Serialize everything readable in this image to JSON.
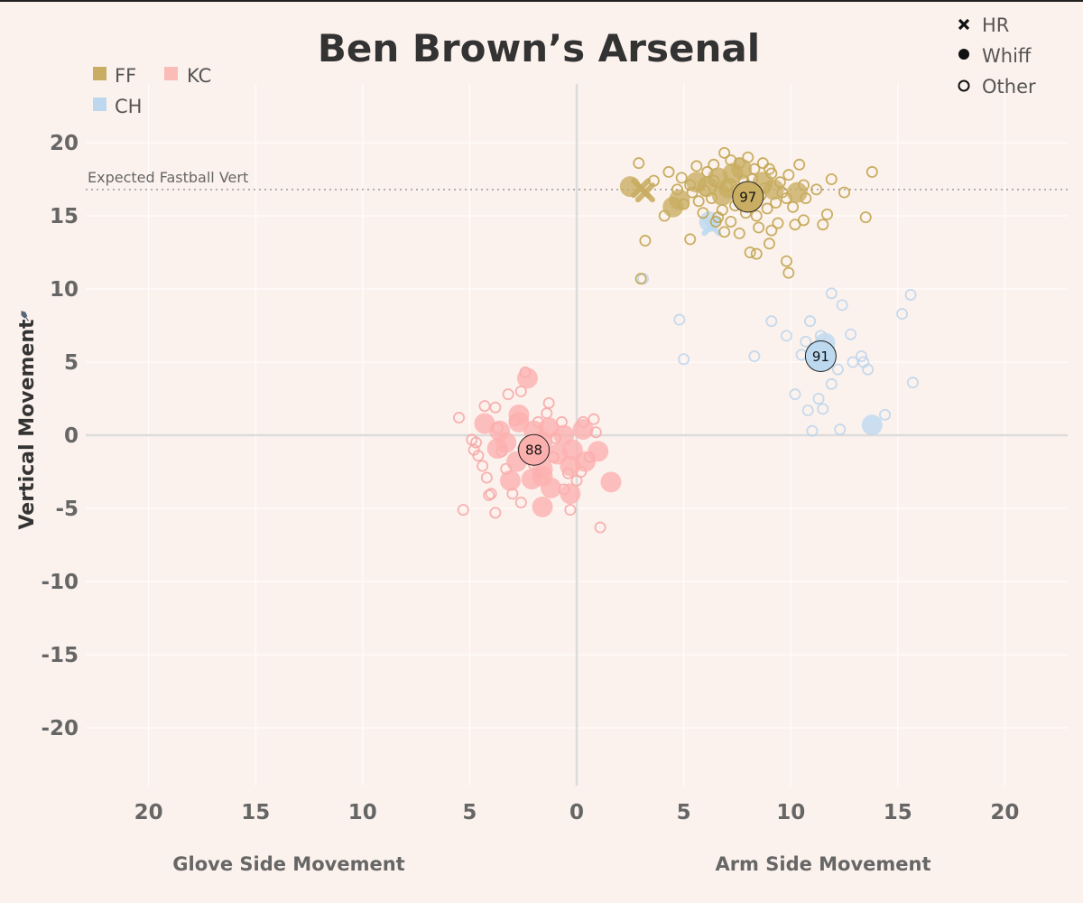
{
  "chart_data": {
    "type": "scatter",
    "title": "Ben Brown’s Arsenal",
    "ylabel": "Vertical Movement",
    "xlabel_left": "Glove Side Movement",
    "xlabel_right": "Arm Side Movement",
    "xlim": [
      -23,
      23
    ],
    "ylim": [
      -24,
      24
    ],
    "x_ticks": [
      -20,
      -15,
      -10,
      -5,
      0,
      5,
      10,
      15,
      20
    ],
    "x_tick_labels": [
      "20",
      "15",
      "10",
      "5",
      "0",
      "5",
      "10",
      "15",
      "20"
    ],
    "y_ticks": [
      20,
      15,
      10,
      5,
      0,
      -5,
      -10,
      -15,
      -20
    ],
    "y_tick_labels": [
      "20",
      "15",
      "10",
      "5",
      "0",
      "-5",
      "-10",
      "-15",
      "-20"
    ],
    "reference_line": {
      "label": "Expected Fastball Vert",
      "y": 16.8
    },
    "pitch_legend": [
      {
        "code": "FF",
        "color": "#c8ad62"
      },
      {
        "code": "KC",
        "color": "#fbbcb8"
      },
      {
        "code": "CH",
        "color": "#bcd7ee"
      }
    ],
    "outcome_legend": [
      {
        "label": "HR",
        "symbol": "x"
      },
      {
        "label": "Whiff",
        "symbol": "filled"
      },
      {
        "label": "Other",
        "symbol": "open"
      }
    ],
    "series": [
      {
        "name": "FF",
        "color": "#c0a24a",
        "fill": "#c8ad62",
        "mean": {
          "x": 8.0,
          "y": 16.3,
          "velo": "97"
        },
        "whiff": [
          [
            2.5,
            17.0
          ],
          [
            4.5,
            15.6
          ],
          [
            4.8,
            16.1
          ],
          [
            6.1,
            17.0
          ],
          [
            6.6,
            17.6
          ],
          [
            7.3,
            17.9
          ],
          [
            7.7,
            18.2
          ],
          [
            8.0,
            16.2
          ],
          [
            7.1,
            16.9
          ],
          [
            8.7,
            17.3
          ],
          [
            10.3,
            16.6
          ],
          [
            5.6,
            17.3
          ],
          [
            6.8,
            16.4
          ],
          [
            9.2,
            16.8
          ]
        ],
        "hr": [
          [
            3.2,
            16.6
          ],
          [
            3.0,
            16.9
          ]
        ],
        "other": [
          [
            2.9,
            18.6
          ],
          [
            3.6,
            17.4
          ],
          [
            4.3,
            18.0
          ],
          [
            4.9,
            17.6
          ],
          [
            5.3,
            17.1
          ],
          [
            5.6,
            18.4
          ],
          [
            6.1,
            18.0
          ],
          [
            6.4,
            18.5
          ],
          [
            6.9,
            19.3
          ],
          [
            7.2,
            18.8
          ],
          [
            7.6,
            18.6
          ],
          [
            8.0,
            19.0
          ],
          [
            8.3,
            18.2
          ],
          [
            8.7,
            18.6
          ],
          [
            9.1,
            17.9
          ],
          [
            9.5,
            17.3
          ],
          [
            9.9,
            17.8
          ],
          [
            10.4,
            18.5
          ],
          [
            10.6,
            17.1
          ],
          [
            11.2,
            16.8
          ],
          [
            11.9,
            17.5
          ],
          [
            12.5,
            16.6
          ],
          [
            13.8,
            18.0
          ],
          [
            13.5,
            14.9
          ],
          [
            11.7,
            15.1
          ],
          [
            11.5,
            14.4
          ],
          [
            10.6,
            14.7
          ],
          [
            10.2,
            14.4
          ],
          [
            9.4,
            14.5
          ],
          [
            9.0,
            13.1
          ],
          [
            8.4,
            12.4
          ],
          [
            8.1,
            12.5
          ],
          [
            9.8,
            11.9
          ],
          [
            9.9,
            11.1
          ],
          [
            7.6,
            13.8
          ],
          [
            6.9,
            13.9
          ],
          [
            6.5,
            14.6
          ],
          [
            5.3,
            13.4
          ],
          [
            3.2,
            13.3
          ],
          [
            3.0,
            10.7
          ],
          [
            4.1,
            15.0
          ],
          [
            5.0,
            15.8
          ],
          [
            5.7,
            16.0
          ],
          [
            6.3,
            16.2
          ],
          [
            6.8,
            15.4
          ],
          [
            7.4,
            15.7
          ],
          [
            7.9,
            15.2
          ],
          [
            8.4,
            15.0
          ],
          [
            8.9,
            15.5
          ],
          [
            9.3,
            15.9
          ],
          [
            9.8,
            16.2
          ],
          [
            10.1,
            15.6
          ],
          [
            10.7,
            16.2
          ],
          [
            6.4,
            17.4
          ],
          [
            7.0,
            17.0
          ],
          [
            7.5,
            16.8
          ],
          [
            8.2,
            17.5
          ],
          [
            8.8,
            16.9
          ],
          [
            9.6,
            16.6
          ],
          [
            5.9,
            15.2
          ],
          [
            6.6,
            14.9
          ],
          [
            7.2,
            14.6
          ],
          [
            8.5,
            14.2
          ],
          [
            9.1,
            14.0
          ],
          [
            5.4,
            16.6
          ],
          [
            4.7,
            16.8
          ],
          [
            6.0,
            16.7
          ],
          [
            9.0,
            18.2
          ],
          [
            7.8,
            17.4
          ],
          [
            8.6,
            16.4
          ]
        ]
      },
      {
        "name": "KC",
        "color": "#f6a6a6",
        "fill": "#fbb0ae",
        "mean": {
          "x": -2.0,
          "y": -1.0,
          "velo": "88"
        },
        "whiff": [
          [
            -2.3,
            3.9
          ],
          [
            -4.3,
            0.8
          ],
          [
            -3.6,
            0.3
          ],
          [
            -3.3,
            -0.5
          ],
          [
            -2.7,
            0.9
          ],
          [
            -2.0,
            0.3
          ],
          [
            -1.6,
            -0.4
          ],
          [
            -1.3,
            0.5
          ],
          [
            -0.6,
            0.0
          ],
          [
            -0.2,
            -1.0
          ],
          [
            0.3,
            0.4
          ],
          [
            1.0,
            -1.1
          ],
          [
            0.4,
            -1.8
          ],
          [
            -0.3,
            -2.1
          ],
          [
            -0.9,
            -1.3
          ],
          [
            -1.6,
            -2.3
          ],
          [
            -2.1,
            -3.0
          ],
          [
            -2.8,
            -1.8
          ],
          [
            -3.1,
            -3.1
          ],
          [
            -1.6,
            -2.8
          ],
          [
            -1.2,
            -3.6
          ],
          [
            -0.3,
            -4.0
          ],
          [
            -1.6,
            -4.9
          ],
          [
            1.6,
            -3.2
          ],
          [
            -3.7,
            -0.9
          ],
          [
            -2.7,
            1.4
          ]
        ],
        "hr": [],
        "other": [
          [
            -2.4,
            4.3
          ],
          [
            -2.6,
            3.0
          ],
          [
            -3.2,
            2.8
          ],
          [
            -3.8,
            1.9
          ],
          [
            -4.3,
            2.0
          ],
          [
            -5.5,
            1.2
          ],
          [
            -4.9,
            -0.3
          ],
          [
            -4.7,
            -0.5
          ],
          [
            -4.6,
            -1.4
          ],
          [
            -4.4,
            -2.1
          ],
          [
            -4.2,
            -2.9
          ],
          [
            -4.0,
            -4.0
          ],
          [
            -4.1,
            -4.1
          ],
          [
            -5.3,
            -5.1
          ],
          [
            -3.8,
            -5.3
          ],
          [
            -3.3,
            -2.3
          ],
          [
            -2.6,
            -4.6
          ],
          [
            -1.3,
            2.2
          ],
          [
            -0.7,
            0.9
          ],
          [
            0.3,
            0.9
          ],
          [
            0.8,
            1.1
          ],
          [
            0.6,
            -1.5
          ],
          [
            0.2,
            -2.5
          ],
          [
            -0.3,
            -5.1
          ],
          [
            1.1,
            -6.3
          ],
          [
            -0.6,
            -3.7
          ],
          [
            -1.1,
            -1.5
          ],
          [
            -2.9,
            1.0
          ],
          [
            -3.5,
            -1.1
          ],
          [
            -2.5,
            -0.9
          ],
          [
            -1.8,
            0.9
          ],
          [
            -1.0,
            -0.2
          ],
          [
            0.0,
            -3.1
          ],
          [
            -2.0,
            -2.0
          ],
          [
            -3.7,
            0.5
          ],
          [
            -4.8,
            -1.0
          ],
          [
            -3.0,
            -4.0
          ],
          [
            -0.4,
            -2.6
          ],
          [
            0.9,
            0.2
          ],
          [
            -1.4,
            1.5
          ]
        ]
      },
      {
        "name": "CH",
        "color": "#bcd5ec",
        "fill": "#bcd9ef",
        "mean": {
          "x": 11.4,
          "y": 5.4,
          "velo": "91"
        },
        "whiff": [
          [
            11.6,
            6.3
          ],
          [
            13.8,
            0.7
          ],
          [
            6.2,
            14.6
          ]
        ],
        "hr": [
          [
            6.3,
            14.3
          ]
        ],
        "other": [
          [
            3.1,
            10.7
          ],
          [
            4.8,
            7.9
          ],
          [
            5.0,
            5.2
          ],
          [
            8.3,
            5.4
          ],
          [
            9.1,
            7.8
          ],
          [
            9.8,
            6.8
          ],
          [
            10.2,
            2.8
          ],
          [
            10.5,
            5.5
          ],
          [
            10.8,
            1.7
          ],
          [
            11.0,
            0.3
          ],
          [
            10.9,
            7.8
          ],
          [
            11.3,
            2.5
          ],
          [
            11.5,
            1.8
          ],
          [
            11.9,
            3.5
          ],
          [
            11.9,
            9.7
          ],
          [
            12.2,
            4.5
          ],
          [
            12.3,
            0.4
          ],
          [
            12.4,
            8.9
          ],
          [
            12.8,
            6.9
          ],
          [
            12.9,
            5.0
          ],
          [
            13.3,
            5.4
          ],
          [
            13.4,
            5.0
          ],
          [
            13.6,
            4.5
          ],
          [
            14.4,
            1.4
          ],
          [
            15.2,
            8.3
          ],
          [
            15.6,
            9.6
          ],
          [
            15.7,
            3.6
          ],
          [
            10.7,
            6.4
          ],
          [
            11.4,
            6.8
          ],
          [
            11.7,
            5.6
          ]
        ]
      }
    ]
  }
}
